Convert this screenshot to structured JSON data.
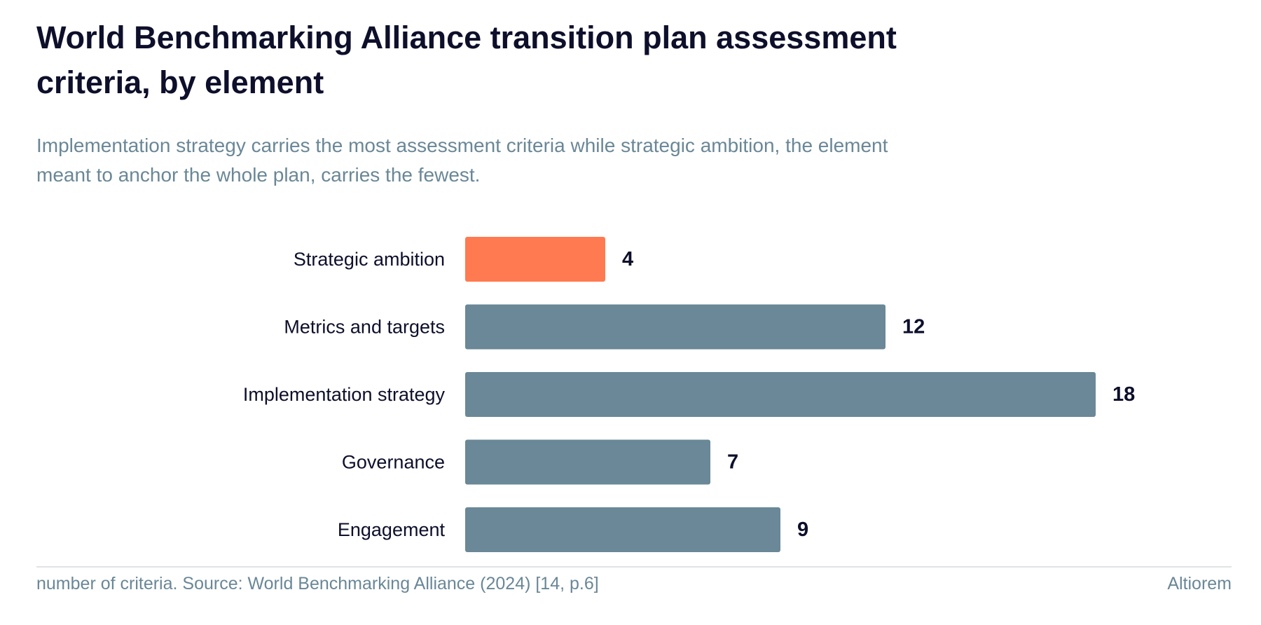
{
  "title": "World Benchmarking Alliance transition plan assessment criteria, by element",
  "subtitle": "Implementation strategy carries the most assessment criteria while strategic ambition, the element meant to anchor the whole plan, carries the fewest.",
  "footer": {
    "source": "number of criteria. Source: World Benchmarking Alliance (2024) [14, p.6]",
    "brand": "Altiorem"
  },
  "colors": {
    "highlight": "#ff7a50",
    "default": "#6a8897",
    "label_text": "#0d0f2b",
    "muted_text": "#6a8797",
    "divider": "#dfe3e6"
  },
  "chart_data": {
    "type": "bar",
    "orientation": "horizontal",
    "categories": [
      "Strategic ambition",
      "Metrics and targets",
      "Implementation strategy",
      "Governance",
      "Engagement"
    ],
    "values": [
      4,
      12,
      18,
      7,
      9
    ],
    "highlighted": [
      "Strategic ambition"
    ],
    "unit": "number of criteria",
    "xlim": [
      0,
      18
    ],
    "grid": false,
    "data_labels": true
  }
}
